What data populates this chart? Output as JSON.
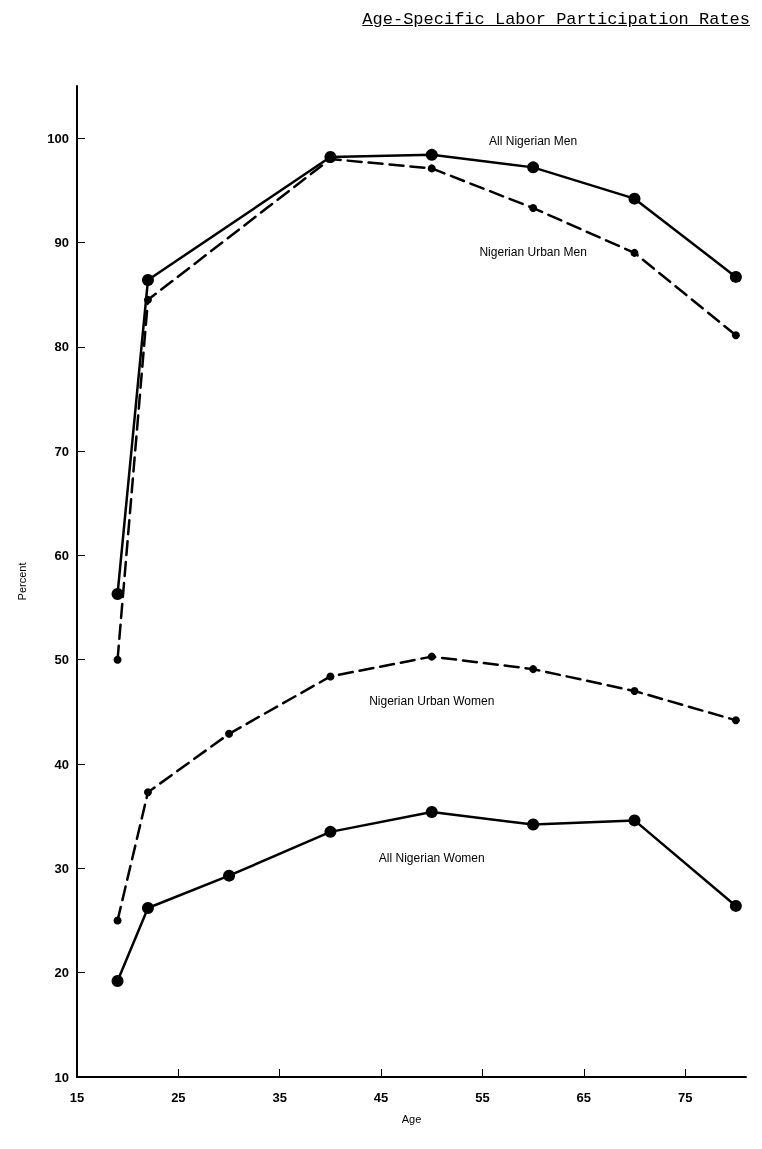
{
  "chart_data": {
    "type": "line",
    "title": "Age-Specific Labor Participation Rates",
    "xlabel": "Age",
    "ylabel": "Percent",
    "x": [
      19,
      22,
      30,
      40,
      50,
      60,
      70,
      80
    ],
    "series": [
      {
        "name": "All Nigerian Men",
        "color": "#000000",
        "line_style": "solid",
        "values": [
          56.3,
          86.4,
          null,
          98.2,
          98.4,
          97.2,
          94.2,
          86.7
        ],
        "x": [
          19,
          22,
          null,
          40,
          50,
          60,
          70,
          80
        ]
      },
      {
        "name": "Nigerian Urban Men",
        "color": "#000000",
        "line_style": "dashed",
        "values": [
          50,
          84.5,
          null,
          98,
          97.1,
          93.3,
          89,
          81.1
        ],
        "x": [
          19,
          22,
          null,
          40,
          50,
          60,
          70,
          80
        ]
      },
      {
        "name": "Nigerian Urban Women",
        "color": "#000000",
        "line_style": "dashed",
        "values": [
          25,
          37.3,
          42.9,
          48.4,
          50.3,
          49.1,
          47,
          44.2
        ]
      },
      {
        "name": "All Nigerian Women",
        "color": "#000000",
        "line_style": "solid",
        "values": [
          19.2,
          26.2,
          29.3,
          33.5,
          35.4,
          34.2,
          34.6,
          26.4
        ]
      }
    ],
    "xlim": [
      15,
      81
    ],
    "xticks": [
      15,
      25,
      35,
      45,
      55,
      65,
      75
    ],
    "ylim": [
      10,
      105
    ],
    "yticks": [
      10,
      20,
      30,
      40,
      50,
      60,
      70,
      80,
      90,
      100
    ],
    "marker": "circle",
    "grid": false,
    "legend": false
  }
}
